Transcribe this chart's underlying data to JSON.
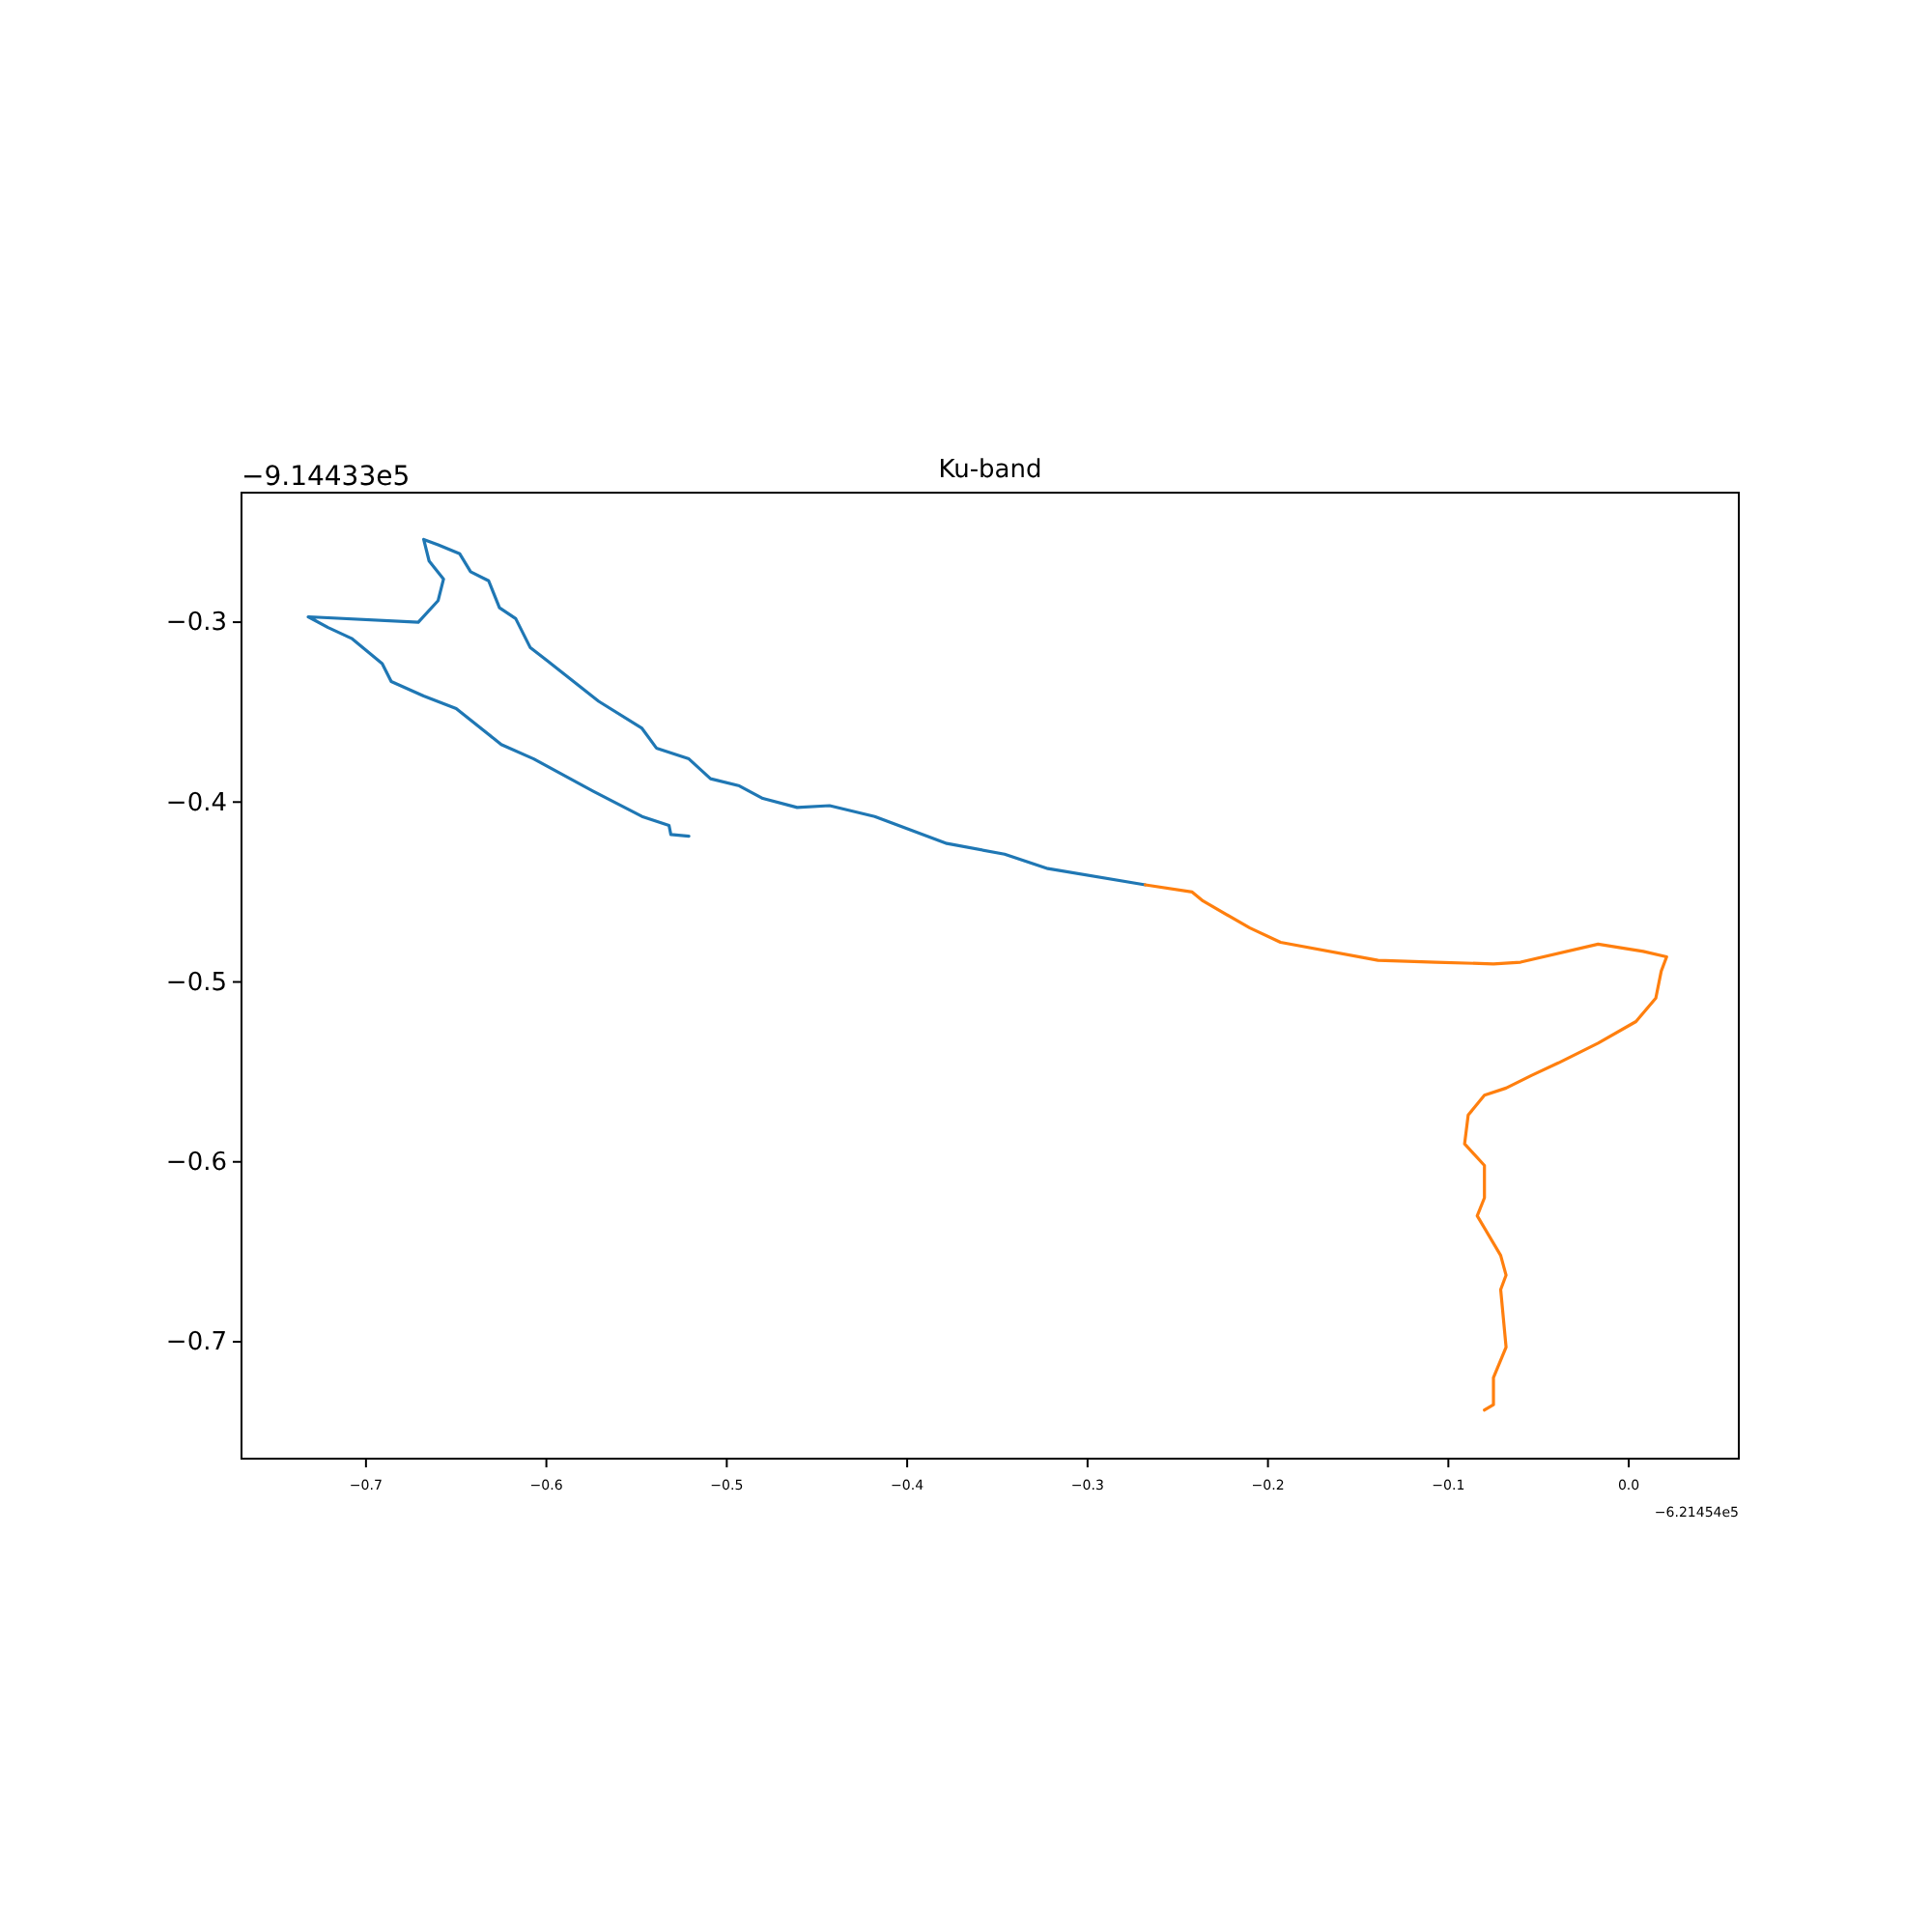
{
  "chart_data": {
    "type": "line",
    "title": "Ku-band",
    "xlim": [
      -0.769,
      0.061
    ],
    "ylim": [
      -0.765,
      -0.228
    ],
    "xticks": [
      {
        "value": -0.7,
        "label": "−0.7"
      },
      {
        "value": -0.6,
        "label": "−0.6"
      },
      {
        "value": -0.5,
        "label": "−0.5"
      },
      {
        "value": -0.4,
        "label": "−0.4"
      },
      {
        "value": -0.3,
        "label": "−0.3"
      },
      {
        "value": -0.2,
        "label": "−0.2"
      },
      {
        "value": -0.1,
        "label": "−0.1"
      },
      {
        "value": 0,
        "label": "0.0"
      }
    ],
    "yticks": [
      {
        "value": -0.7,
        "label": "−0.7"
      },
      {
        "value": -0.6,
        "label": "−0.6"
      },
      {
        "value": -0.5,
        "label": "−0.5"
      },
      {
        "value": -0.4,
        "label": "−0.4"
      },
      {
        "value": -0.3,
        "label": "−0.3"
      }
    ],
    "annotations": [
      "−6.21454e5",
      "−9.14433e5"
    ],
    "grid": false,
    "marker": "none",
    "line_style": "solid",
    "series": [
      {
        "color": "#1f77b4",
        "x": [
          -0.521,
          -0.531,
          -0.532,
          -0.547,
          -0.574,
          -0.607,
          -0.625,
          -0.65,
          -0.668,
          -0.686,
          -0.691,
          -0.708,
          -0.721,
          -0.732,
          -0.671,
          -0.66,
          -0.657,
          -0.665,
          -0.668,
          -0.66,
          -0.648,
          -0.642,
          -0.632,
          -0.626,
          -0.617,
          -0.609,
          -0.6,
          -0.571,
          -0.547,
          -0.539,
          -0.521,
          -0.509,
          -0.493,
          -0.48,
          -0.461,
          -0.443,
          -0.418,
          -0.378,
          -0.346,
          -0.322,
          -0.268
        ],
        "values": [
          -0.419,
          -0.418,
          -0.413,
          -0.408,
          -0.394,
          -0.376,
          -0.368,
          -0.348,
          -0.341,
          -0.333,
          -0.323,
          -0.309,
          -0.303,
          -0.297,
          -0.3,
          -0.288,
          -0.276,
          -0.266,
          -0.254,
          -0.257,
          -0.262,
          -0.272,
          -0.277,
          -0.292,
          -0.298,
          -0.314,
          -0.321,
          -0.344,
          -0.359,
          -0.37,
          -0.376,
          -0.387,
          -0.391,
          -0.398,
          -0.403,
          -0.402,
          -0.408,
          -0.423,
          -0.429,
          -0.437,
          -0.446
        ]
      },
      {
        "color": "#ff7f0e",
        "x": [
          -0.268,
          -0.242,
          -0.236,
          -0.21,
          -0.193,
          -0.139,
          -0.107,
          -0.075,
          -0.06,
          -0.017,
          0.008,
          0.021,
          0.018,
          0.015,
          0.004,
          -0.017,
          -0.039,
          -0.054,
          -0.068,
          -0.08,
          -0.089,
          -0.091,
          -0.08,
          -0.08,
          -0.084,
          -0.071,
          -0.068,
          -0.071,
          -0.068,
          -0.075,
          -0.075,
          -0.08
        ],
        "values": [
          -0.446,
          -0.45,
          -0.455,
          -0.47,
          -0.478,
          -0.488,
          -0.489,
          -0.49,
          -0.489,
          -0.479,
          -0.483,
          -0.486,
          -0.494,
          -0.509,
          -0.522,
          -0.534,
          -0.545,
          -0.552,
          -0.559,
          -0.563,
          -0.574,
          -0.59,
          -0.602,
          -0.62,
          -0.63,
          -0.652,
          -0.663,
          -0.671,
          -0.703,
          -0.72,
          -0.735,
          -0.738
        ]
      }
    ]
  }
}
